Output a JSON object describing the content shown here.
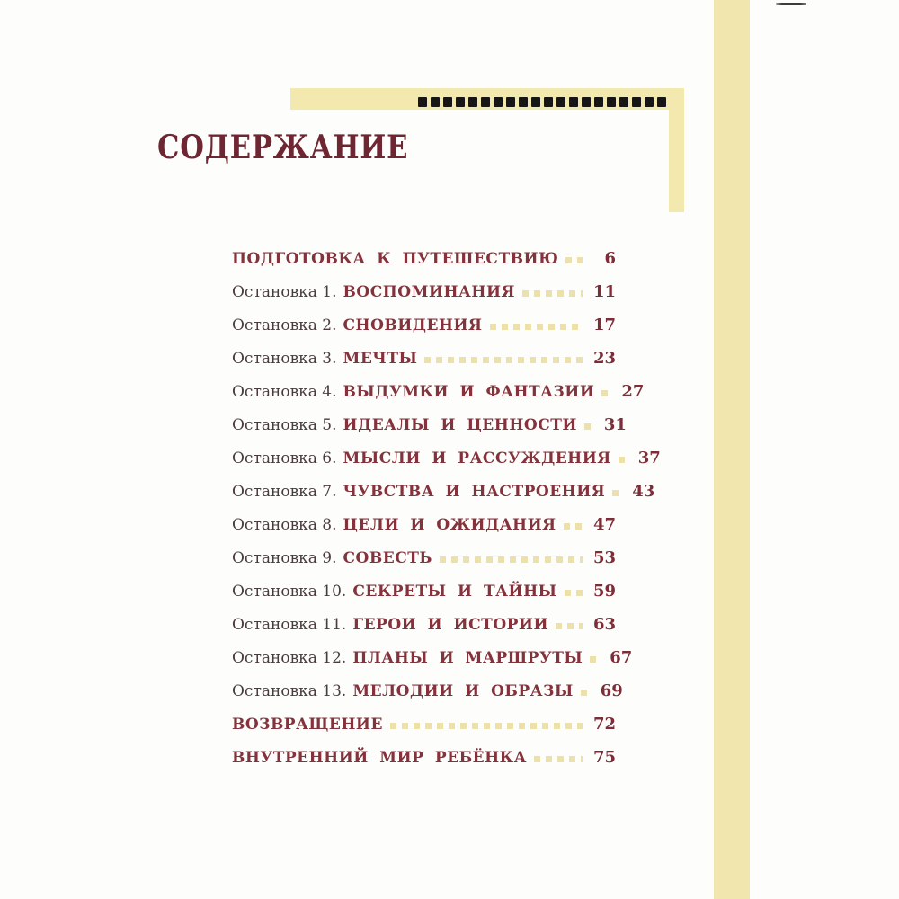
{
  "page": {
    "title": "СОДЕРЖАНИЕ"
  },
  "decor": {
    "squares_count": 20,
    "description_squares": "row of small black squares ornament",
    "description_frame": "yellow corner frame and right page-edge stripe"
  },
  "colors": {
    "title_maroon": "#6e2732",
    "entry_red": "#84323c",
    "page_number_red": "#7c2e38",
    "prefix_brown": "#4a3c3d",
    "leader_yellow": "#ece1ab",
    "decor_yellow": "#f3e8ad",
    "stripe_yellow": "#f1e7ae",
    "ornament_black": "#161616",
    "page_background": "#fdfdfb"
  },
  "toc": {
    "entries": [
      {
        "prefix": "",
        "title": "ПОДГОТОВКА К ПУТЕШЕСТВИЮ",
        "page": "6"
      },
      {
        "prefix": "Остановка 1.",
        "title": "ВОСПОМИНАНИЯ",
        "page": "11"
      },
      {
        "prefix": "Остановка 2.",
        "title": "СНОВИДЕНИЯ",
        "page": "17"
      },
      {
        "prefix": "Остановка 3.",
        "title": "МЕЧТЫ",
        "page": "23"
      },
      {
        "prefix": "Остановка 4.",
        "title": "ВЫДУМКИ И ФАНТАЗИИ",
        "page": "27"
      },
      {
        "prefix": "Остановка 5.",
        "title": "ИДЕАЛЫ И ЦЕННОСТИ",
        "page": "31"
      },
      {
        "prefix": "Остановка 6.",
        "title": "МЫСЛИ И РАССУЖДЕНИЯ",
        "page": "37"
      },
      {
        "prefix": "Остановка 7.",
        "title": "ЧУВСТВА И НАСТРОЕНИЯ",
        "page": "43"
      },
      {
        "prefix": "Остановка 8.",
        "title": "ЦЕЛИ И ОЖИДАНИЯ",
        "page": "47"
      },
      {
        "prefix": "Остановка 9.",
        "title": "СОВЕСТЬ",
        "page": "53"
      },
      {
        "prefix": "Остановка 10.",
        "title": "СЕКРЕТЫ И ТАЙНЫ",
        "page": "59"
      },
      {
        "prefix": "Остановка 11.",
        "title": "ГЕРОИ И ИСТОРИИ",
        "page": "63"
      },
      {
        "prefix": "Остановка 12.",
        "title": "ПЛАНЫ И МАРШРУТЫ",
        "page": "67"
      },
      {
        "prefix": "Остановка 13.",
        "title": "МЕЛОДИИ И ОБРАЗЫ",
        "page": "69"
      },
      {
        "prefix": "",
        "title": "ВОЗВРАЩЕНИЕ",
        "page": "72"
      },
      {
        "prefix": "",
        "title": "ВНУТРЕННИЙ МИР РЕБЁНКА",
        "page": "75"
      }
    ]
  }
}
